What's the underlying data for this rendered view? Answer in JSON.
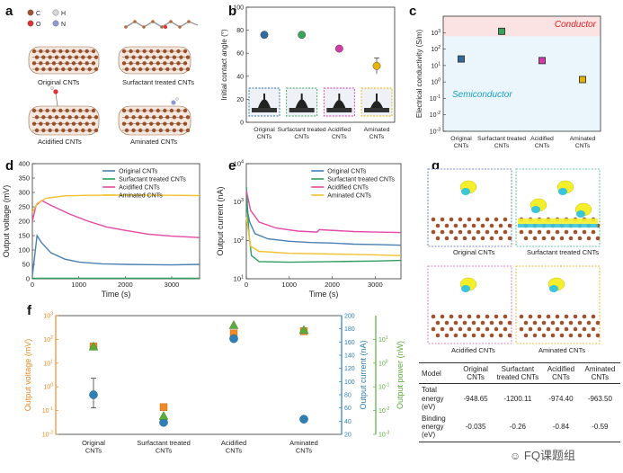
{
  "panel_labels": {
    "a": "a",
    "b": "b",
    "c": "c",
    "d": "d",
    "e": "e",
    "f": "f",
    "g": "g"
  },
  "panel_a": {
    "legend": [
      {
        "symbol": "C",
        "color": "#a0522d"
      },
      {
        "symbol": "H",
        "color": "#d9d9d9"
      },
      {
        "symbol": "O",
        "color": "#e03030"
      },
      {
        "symbol": "N",
        "color": "#8e9bd6"
      }
    ],
    "captions": [
      "Original CNTs",
      "Surfactant treated CNTs",
      "Acidified CNTs",
      "Aminated CNTs"
    ]
  },
  "panel_g": {
    "captions": [
      "Original CNTs",
      "Surfactant treated CNTs",
      "Acidified CNTs",
      "Aminated CNTs"
    ]
  },
  "energy_table": {
    "headers": [
      "Model",
      "Original CNTs",
      "Surfactant treated CNTs",
      "Acidified CNTs",
      "Aminated CNTs"
    ],
    "rows": [
      {
        "label": "Total energy (eV)",
        "values": [
          "-948.65",
          "-1200.11",
          "-974.40",
          "-963.50"
        ]
      },
      {
        "label": "Binding energy (eV)",
        "values": [
          "-0.035",
          "-0.26",
          "-0.84",
          "-0.59"
        ]
      }
    ]
  },
  "watermark": "FQ课题组",
  "chart_data": [
    {
      "id": "b",
      "type": "scatter",
      "ylabel": "Initial contact angle (°)",
      "categories": [
        "Original CNTs",
        "Surfactant treated CNTs",
        "Acidified CNTs",
        "Aminated CNTs"
      ],
      "values": [
        76,
        76,
        64,
        49
      ],
      "errors": [
        0,
        0,
        0,
        7
      ],
      "colors": [
        "#2f6aa0",
        "#3aa45c",
        "#d23aa5",
        "#e8b300"
      ],
      "ylim": [
        0,
        100
      ],
      "yticks": [
        0,
        20,
        40,
        60,
        80,
        100
      ]
    },
    {
      "id": "c",
      "type": "scatter",
      "ylabel": "Electrical conductivity (S/m)",
      "yscale": "log",
      "categories": [
        "Original CNTs",
        "Surfactant treated CNTs",
        "Acidified CNTs",
        "Aminated CNTs"
      ],
      "values": [
        25,
        1200,
        20,
        1.4
      ],
      "colors": [
        "#2f6aa0",
        "#3aa45c",
        "#d23aa5",
        "#e8b300"
      ],
      "ylim": [
        0.001,
        10000
      ],
      "ytick_labels": [
        "10^-3",
        "10^-2",
        "10^-1",
        "10^0",
        "10^1",
        "10^2",
        "10^3"
      ],
      "annotations": [
        {
          "text": "Conductor",
          "color": "#e02020"
        },
        {
          "text": "Semiconductor",
          "color": "#1aa0c8"
        }
      ]
    },
    {
      "id": "d",
      "type": "line",
      "xlabel": "Time (s)",
      "ylabel": "Output voltage (mV)",
      "xlim": [
        0,
        3600
      ],
      "ylim": [
        0,
        400
      ],
      "xticks": [
        0,
        1000,
        2000,
        3000
      ],
      "yticks": [
        0,
        50,
        100,
        150,
        200,
        250,
        300,
        350,
        400
      ],
      "series": [
        {
          "name": "Original CNTs",
          "color": "#4a7fb5",
          "points": [
            [
              0,
              10
            ],
            [
              100,
              150
            ],
            [
              200,
              125
            ],
            [
              400,
              90
            ],
            [
              700,
              68
            ],
            [
              1000,
              58
            ],
            [
              1500,
              52
            ],
            [
              2000,
              50
            ],
            [
              2500,
              49
            ],
            [
              3000,
              48
            ],
            [
              3600,
              50
            ]
          ]
        },
        {
          "name": "Surfactant treated CNTs",
          "color": "#2e9e5e",
          "points": [
            [
              0,
              2
            ],
            [
              3600,
              2
            ]
          ]
        },
        {
          "name": "Acidified CNTs",
          "color": "#e548a6",
          "points": [
            [
              0,
              200
            ],
            [
              80,
              255
            ],
            [
              200,
              272
            ],
            [
              400,
              255
            ],
            [
              800,
              225
            ],
            [
              1200,
              200
            ],
            [
              1600,
              180
            ],
            [
              2000,
              168
            ],
            [
              2500,
              155
            ],
            [
              3000,
              148
            ],
            [
              3600,
              143
            ]
          ]
        },
        {
          "name": "Aminated CNTs",
          "color": "#f2c12e",
          "points": [
            [
              0,
              230
            ],
            [
              100,
              262
            ],
            [
              300,
              280
            ],
            [
              700,
              288
            ],
            [
              1200,
              290
            ],
            [
              2000,
              291
            ],
            [
              3000,
              290
            ],
            [
              3600,
              289
            ]
          ]
        }
      ]
    },
    {
      "id": "e",
      "type": "line",
      "xlabel": "Time (s)",
      "ylabel": "Output current (nA)",
      "yscale": "log",
      "xlim": [
        0,
        3600
      ],
      "ylim": [
        10,
        10000
      ],
      "xticks": [
        0,
        1000,
        2000,
        3000
      ],
      "ytick_labels": [
        "10^1",
        "10^2",
        "10^3",
        "10^4"
      ],
      "series": [
        {
          "name": "Original CNTs",
          "color": "#4a7fb5",
          "points": [
            [
              0,
              800
            ],
            [
              80,
              300
            ],
            [
              200,
              150
            ],
            [
              500,
              110
            ],
            [
              1000,
              95
            ],
            [
              1500,
              88
            ],
            [
              2000,
              85
            ],
            [
              2500,
              80
            ],
            [
              3000,
              78
            ],
            [
              3600,
              75
            ]
          ]
        },
        {
          "name": "Surfactant treated CNTs",
          "color": "#2e9e5e",
          "points": [
            [
              0,
              2500
            ],
            [
              60,
              150
            ],
            [
              120,
              40
            ],
            [
              300,
              28
            ],
            [
              1000,
              27
            ],
            [
              2000,
              28
            ],
            [
              3000,
              29
            ],
            [
              3600,
              30
            ]
          ]
        },
        {
          "name": "Acidified CNTs",
          "color": "#e548a6",
          "points": [
            [
              0,
              2000
            ],
            [
              100,
              600
            ],
            [
              300,
              300
            ],
            [
              700,
              210
            ],
            [
              1200,
              175
            ],
            [
              1650,
              165
            ],
            [
              1700,
              190
            ],
            [
              2500,
              170
            ],
            [
              3000,
              165
            ],
            [
              3600,
              160
            ]
          ]
        },
        {
          "name": "Aminated CNTs",
          "color": "#f2c12e",
          "points": [
            [
              0,
              400
            ],
            [
              100,
              70
            ],
            [
              300,
              52
            ],
            [
              1000,
              46
            ],
            [
              2000,
              44
            ],
            [
              3000,
              42
            ],
            [
              3600,
              40
            ]
          ]
        }
      ]
    },
    {
      "id": "f",
      "type": "scatter",
      "categories": [
        "Original CNTs",
        "Surfactant treated CNTs",
        "Acidified CNTs",
        "Aminated CNTs"
      ],
      "axes": [
        {
          "label": "Output voltage (mV)",
          "color": "#f08a24",
          "scale": "log",
          "ylim": [
            0.01,
            1000
          ],
          "tick_labels": [
            "10^-2",
            "10^-1",
            "10^0",
            "10^1",
            "10^2",
            "10^3"
          ]
        },
        {
          "label": "Output current (nA)",
          "color": "#2f7fb5",
          "scale": "linear",
          "ylim": [
            20,
            200
          ],
          "ticks": [
            20,
            40,
            60,
            80,
            100,
            120,
            140,
            160,
            180,
            200
          ]
        },
        {
          "label": "Output power (nW)",
          "color": "#5aac3c",
          "scale": "log",
          "ylim": [
            0.001,
            100
          ],
          "tick_labels": [
            "10^-3",
            "10^-2",
            "10^-1",
            "10^0",
            "10^1"
          ]
        }
      ],
      "series": [
        {
          "name": "Output voltage",
          "axis": 0,
          "marker": "square",
          "color": "#f08a24",
          "values": [
            50,
            0.14,
            180,
            220
          ]
        },
        {
          "name": "Output current",
          "axis": 1,
          "marker": "circle",
          "color": "#2f7fb5",
          "values": [
            80,
            38,
            165,
            43
          ],
          "errors": [
            [
              60,
              105
            ],
            [
              0,
              0
            ],
            [
              0,
              0
            ],
            [
              0,
              0
            ]
          ]
        },
        {
          "name": "Output power",
          "axis": 2,
          "marker": "triangle",
          "color": "#5aac3c",
          "values": [
            5,
            0.006,
            40,
            25
          ]
        }
      ]
    }
  ]
}
